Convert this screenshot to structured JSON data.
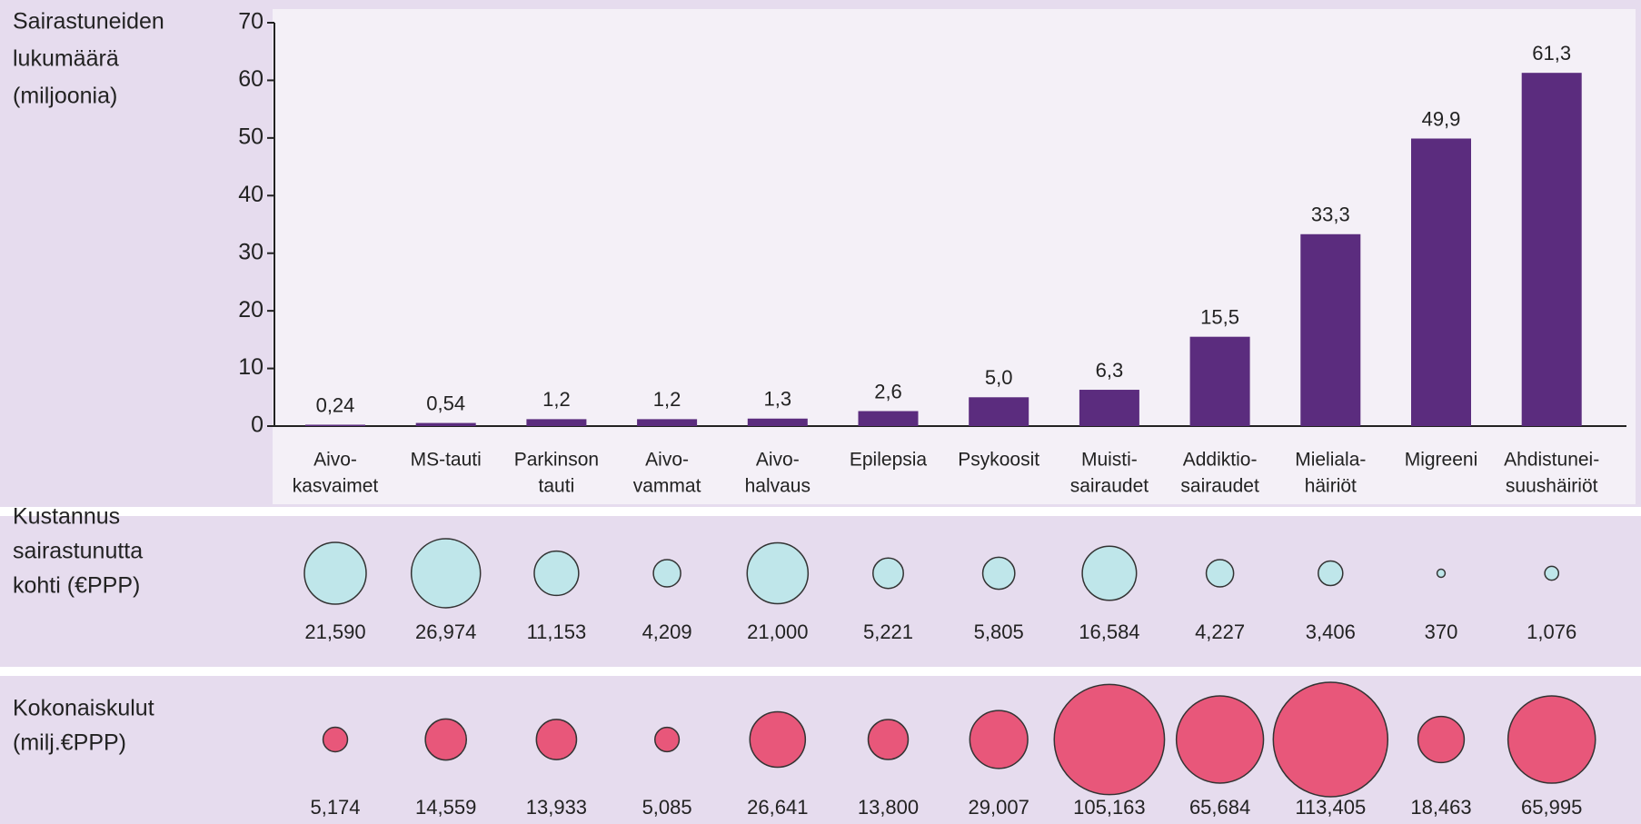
{
  "chart_data": [
    {
      "type": "bar",
      "ylabel": [
        "Sairastuneiden",
        "lukumäärä",
        "(miljoonia)"
      ],
      "categories": [
        [
          "Aivo-",
          "kasvaimet"
        ],
        [
          "MS-tauti"
        ],
        [
          "Parkinson",
          "tauti"
        ],
        [
          "Aivo-",
          "vammat"
        ],
        [
          "Aivo-",
          "halvaus"
        ],
        [
          "Epilepsia"
        ],
        [
          "Psykoosit"
        ],
        [
          "Muisti-",
          "sairaudet"
        ],
        [
          "Addiktio-",
          "sairaudet"
        ],
        [
          "Mieliala-",
          "häiriöt"
        ],
        [
          "Migreeni"
        ],
        [
          "Ahdistunei-",
          "suushäiriöt"
        ]
      ],
      "values": [
        0.24,
        0.54,
        1.2,
        1.2,
        1.3,
        2.6,
        5.0,
        6.3,
        15.5,
        33.3,
        49.9,
        61.3
      ],
      "value_labels": [
        "0,24",
        "0,54",
        "1,2",
        "1,2",
        "1,3",
        "2,6",
        "5,0",
        "6,3",
        "15,5",
        "33,3",
        "49,9",
        "61,3"
      ],
      "color": "#5b2c7e",
      "ylim": [
        0,
        70
      ],
      "yticks": [
        0,
        10,
        20,
        30,
        40,
        50,
        60,
        70
      ]
    },
    {
      "type": "bubble",
      "label": [
        "Kustannus",
        "sairastunutta",
        "kohti (€PPP)"
      ],
      "values": [
        21590,
        26974,
        11153,
        4209,
        21000,
        5221,
        5805,
        16584,
        4227,
        3406,
        370,
        1076
      ],
      "value_labels": [
        "21,590",
        "26,974",
        "11,153",
        "4,209",
        "21,000",
        "5,221",
        "5,805",
        "16,584",
        "4,227",
        "3,406",
        "370",
        "1,076"
      ],
      "color": "#bfe6ea"
    },
    {
      "type": "bubble",
      "label": [
        "Kokonaiskulut",
        "(milj.€PPP)"
      ],
      "values": [
        5174,
        14559,
        13933,
        5085,
        26641,
        13800,
        29007,
        105163,
        65684,
        113405,
        18463,
        65995
      ],
      "value_labels": [
        "5,174",
        "14,559",
        "13,933",
        "5,085",
        "26,641",
        "13,800",
        "29,007",
        "105,163",
        "65,684",
        "113,405",
        "18,463",
        "65,995"
      ],
      "color": "#e8577a"
    }
  ]
}
